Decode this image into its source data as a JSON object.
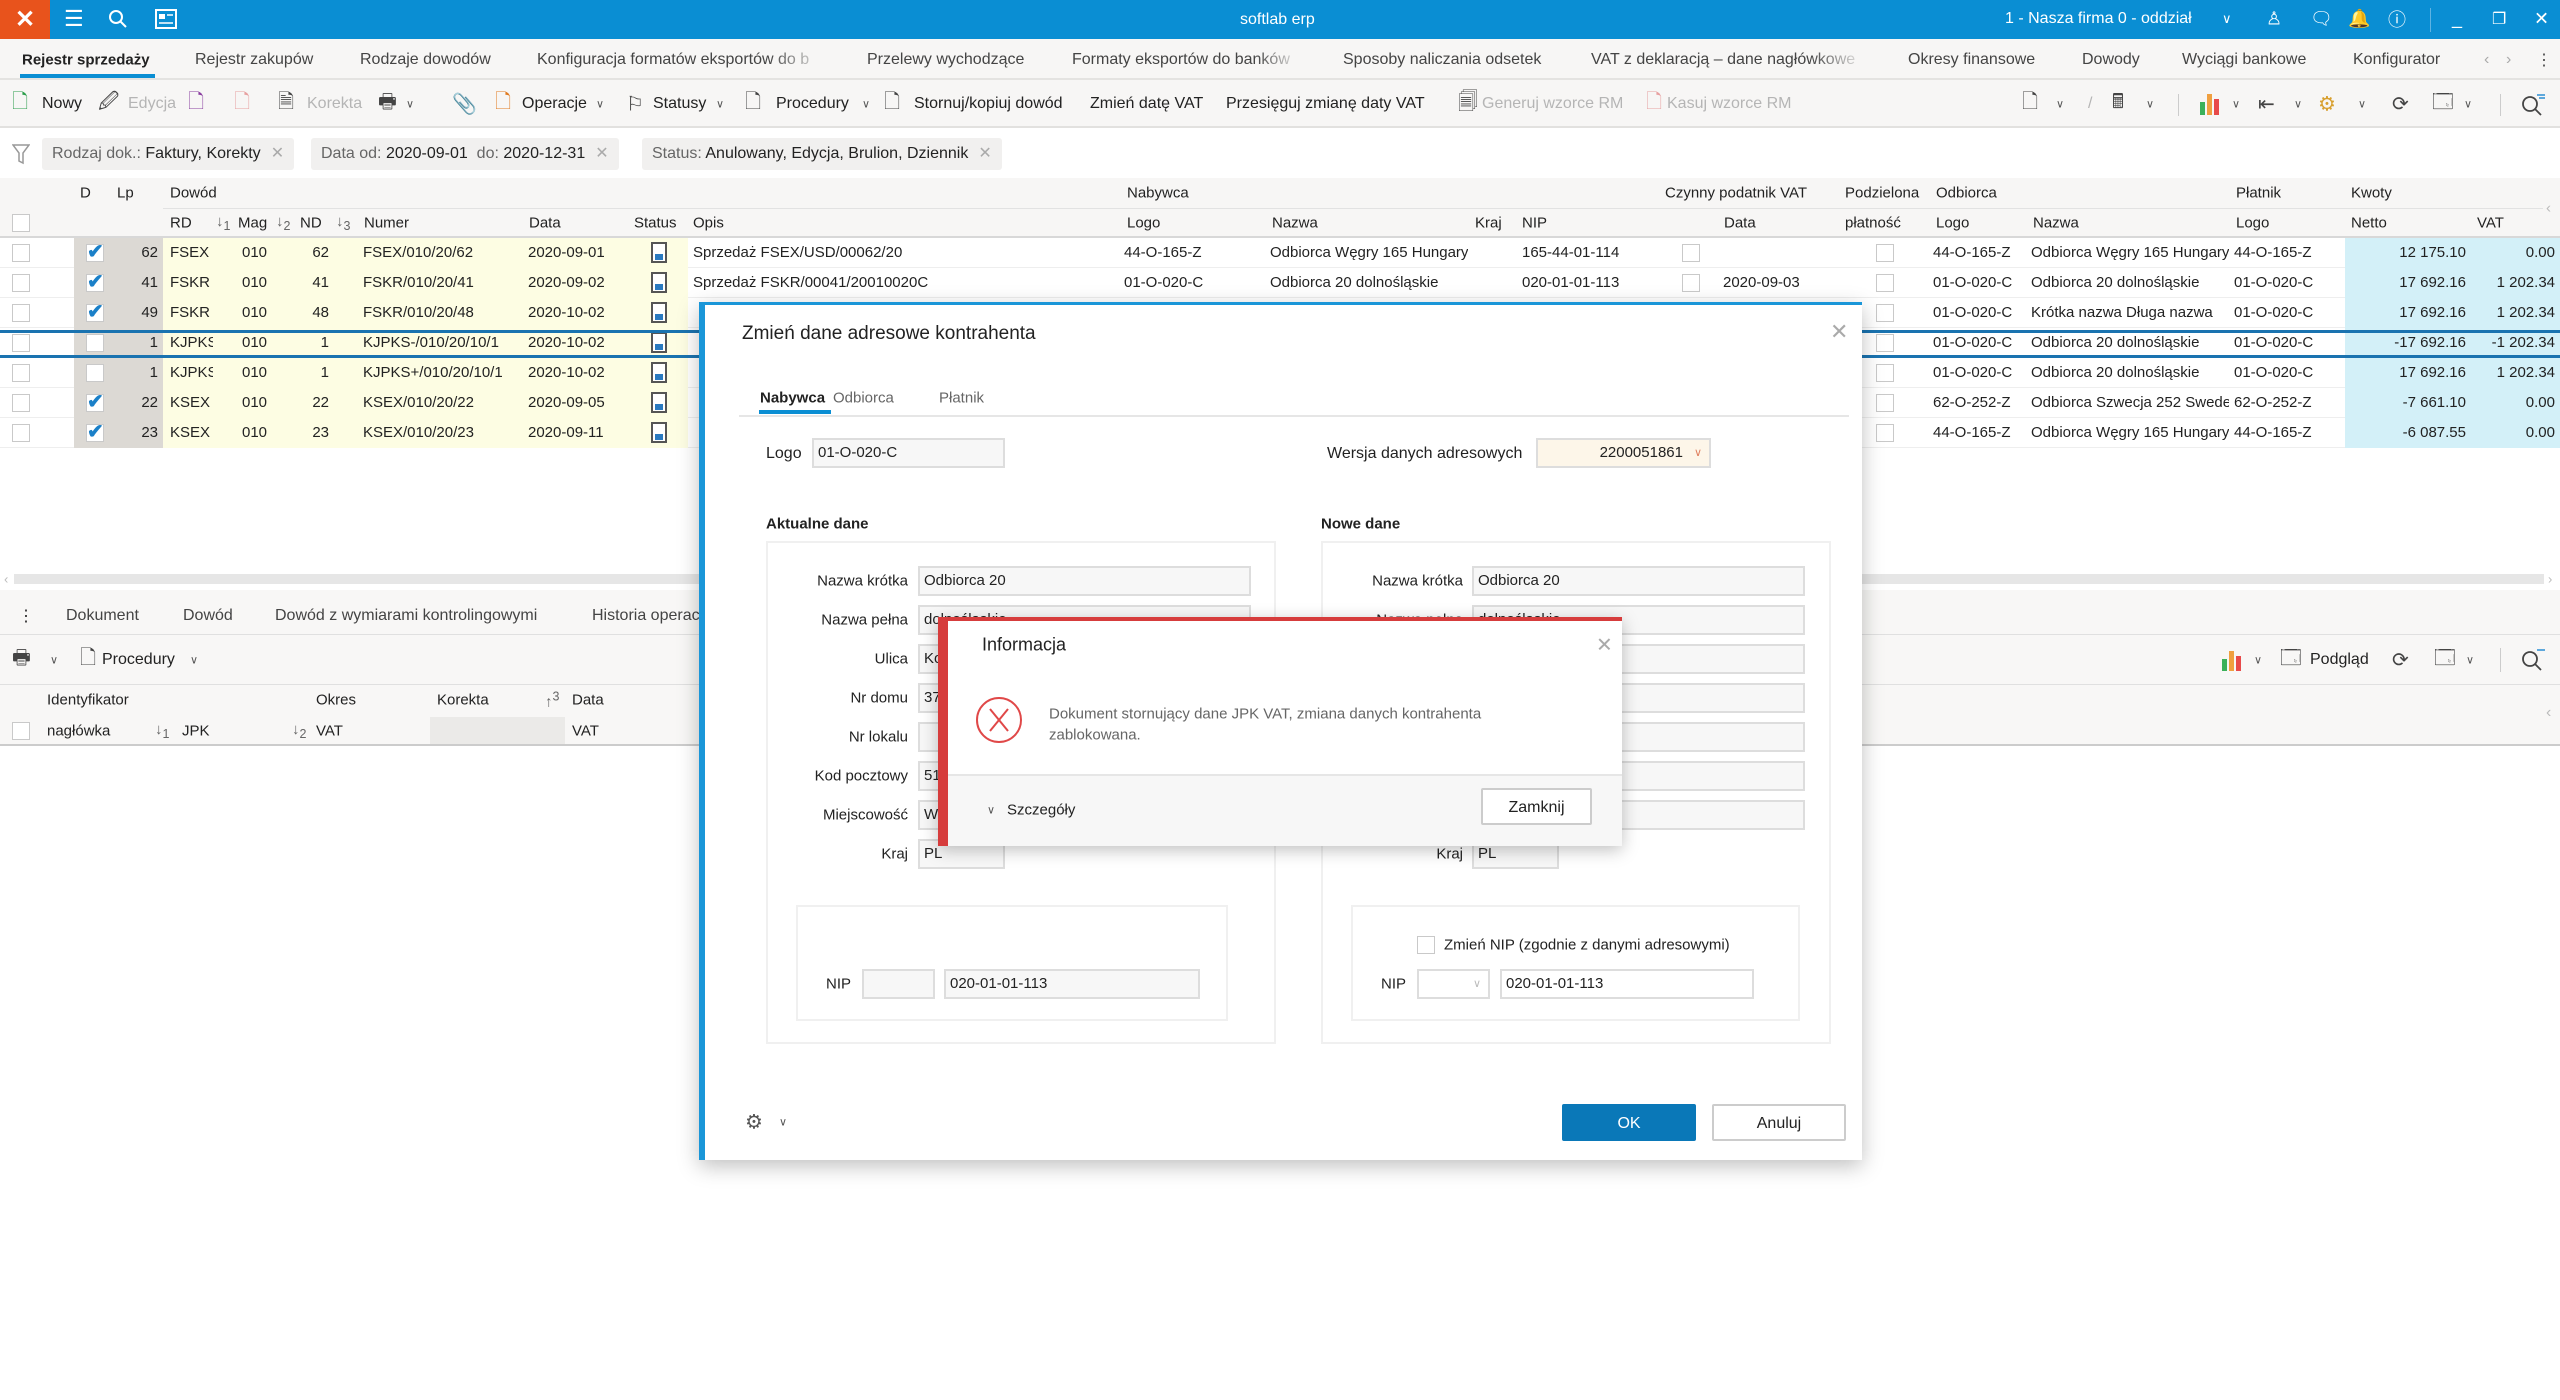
{
  "app": {
    "title": "softlab erp",
    "company": "1 - Nasza firma 0 - oddział"
  },
  "tabs": [
    "Rejestr sprzedaży",
    "Rejestr zakupów",
    "Rodzaje dowodów",
    "Konfiguracja formatów eksportów do b",
    "Przelewy wychodzące",
    "Formaty eksportów do banków",
    "Sposoby naliczania odsetek",
    "VAT z deklaracją – dane nagłówkowe",
    "Okresy finansowe",
    "Dowody",
    "Wyciągi bankowe",
    "Konfigurator"
  ],
  "toolbar": {
    "new": "Nowy",
    "edit": "Edycja",
    "correction": "Korekta",
    "operations": "Operacje",
    "statuses": "Statusy",
    "procedures": "Procedury",
    "reverse": "Stornuj/kopiuj dowód",
    "change_vat_date": "Zmień datę VAT",
    "move_vat_date": "Przesięguj zmianę daty VAT",
    "generate_rm": "Generuj wzorce RM",
    "delete_rm": "Kasuj wzorce RM"
  },
  "filters": [
    {
      "label": "Rodzaj dok.:",
      "value": "Faktury, Korekty"
    },
    {
      "label": "Data  od:",
      "value": "2020-09-01",
      "label2": "do:",
      "value2": "2020-12-31"
    },
    {
      "label": "Status:",
      "value": "Anulowany, Edycja, Brulion, Dziennik"
    }
  ],
  "table": {
    "groups": {
      "d": "D",
      "lp": "Lp",
      "dowod": "Dowód",
      "nabywca": "Nabywca",
      "czynny": "Czynny podatnik VAT",
      "podzielona": "Podzielona",
      "odbiorca": "Odbiorca",
      "platnik": "Płatnik",
      "kwoty": "Kwoty"
    },
    "cols": {
      "rd": "RD",
      "mag": "Mag",
      "nd": "ND",
      "numer": "Numer",
      "data": "Data",
      "status": "Status",
      "opis": "Opis",
      "logo": "Logo",
      "nazwa": "Nazwa",
      "kraj": "Kraj",
      "nip": "NIP",
      "cz_data": "Data",
      "platnosc": "płatność",
      "odb_logo": "Logo",
      "odb_nazwa": "Nazwa",
      "pl_logo": "Logo",
      "netto": "Netto",
      "vat": "VAT"
    },
    "sort": [
      "1",
      "2",
      "3"
    ],
    "rows": [
      {
        "d": true,
        "lp": "62",
        "rd": "FSEX",
        "mag": "010",
        "nd": "62",
        "numer": "FSEX/010/20/62",
        "data": "2020-09-01",
        "opis": "Sprzedaż FSEX/USD/00062/20",
        "logo": "44-O-165-Z",
        "nazwa": "Odbiorca Węgry 165 Hungary",
        "kraj": "",
        "nip": "165-44-01-114",
        "cz": false,
        "cz_data": "",
        "odb_logo": "44-O-165-Z",
        "odb_nazwa": "Odbiorca Węgry 165 Hungary",
        "pl_logo": "44-O-165-Z",
        "netto": "12 175.10",
        "vat": "0.00"
      },
      {
        "d": true,
        "lp": "41",
        "rd": "FSKR",
        "mag": "010",
        "nd": "41",
        "numer": "FSKR/010/20/41",
        "data": "2020-09-02",
        "opis": "Sprzedaż FSKR/00041/20010020C",
        "logo": "01-O-020-C",
        "nazwa": "Odbiorca 20 dolnośląskie",
        "kraj": "",
        "nip": "020-01-01-113",
        "cz": false,
        "cz_data": "2020-09-03",
        "odb_logo": "01-O-020-C",
        "odb_nazwa": "Odbiorca 20 dolnośląskie",
        "pl_logo": "01-O-020-C",
        "netto": "17 692.16",
        "vat": "1 202.34"
      },
      {
        "d": true,
        "lp": "49",
        "rd": "FSKR",
        "mag": "010",
        "nd": "48",
        "numer": "FSKR/010/20/48",
        "data": "2020-10-02",
        "odb_logo": "01-O-020-C",
        "odb_nazwa": "Krótka nazwa  Długa nazwa",
        "pl_logo": "01-O-020-C",
        "netto": "17 692.16",
        "vat": "1 202.34"
      },
      {
        "d": false,
        "lp": "1",
        "rd": "KJPKS-",
        "mag": "010",
        "nd": "1",
        "numer": "KJPKS-/010/20/10/1",
        "data": "2020-10-02",
        "selected": true,
        "odb_logo": "01-O-020-C",
        "odb_nazwa": "Odbiorca 20 dolnośląskie",
        "pl_logo": "01-O-020-C",
        "netto": "-17 692.16",
        "vat": "-1 202.34"
      },
      {
        "d": false,
        "lp": "1",
        "rd": "KJPKS+",
        "mag": "010",
        "nd": "1",
        "numer": "KJPKS+/010/20/10/1",
        "data": "2020-10-02",
        "odb_logo": "01-O-020-C",
        "odb_nazwa": "Odbiorca 20 dolnośląskie",
        "pl_logo": "01-O-020-C",
        "netto": "17 692.16",
        "vat": "1 202.34"
      },
      {
        "d": true,
        "lp": "22",
        "rd": "KSEX",
        "mag": "010",
        "nd": "22",
        "numer": "KSEX/010/20/22",
        "data": "2020-09-05",
        "odb_logo": "62-O-252-Z",
        "odb_nazwa": "Odbiorca Szwecja 252 Sweden",
        "pl_logo": "62-O-252-Z",
        "netto": "-7 661.10",
        "vat": "0.00"
      },
      {
        "d": true,
        "lp": "23",
        "rd": "KSEX",
        "mag": "010",
        "nd": "23",
        "numer": "KSEX/010/20/23",
        "data": "2020-09-11",
        "odb_logo": "44-O-165-Z",
        "odb_nazwa": "Odbiorca Węgry 165 Hungary",
        "pl_logo": "44-O-165-Z",
        "netto": "-6 087.55",
        "vat": "0.00"
      }
    ]
  },
  "bottom": {
    "tabs": [
      "Dokument",
      "Dowód",
      "Dowód z wymiarami kontrolingowymi",
      "Historia operacji"
    ],
    "procedures": "Procedury",
    "preview": "Podgląd",
    "headers": {
      "identyfikator": "Identyfikator",
      "okres": "Okres",
      "korekta": "Korekta",
      "data": "Data",
      "naglowka": "nagłówka",
      "jpk": "JPK",
      "vat": "VAT",
      "vat2": "VAT",
      "sort3": "3",
      "sort1": "1",
      "sort2": "2"
    }
  },
  "dialog": {
    "title": "Zmień dane adresowe kontrahenta",
    "tabs": [
      "Nabywca",
      "Odbiorca",
      "Płatnik"
    ],
    "logo_label": "Logo",
    "logo_value": "01-O-020-C",
    "version_label": "Wersja danych adresowych",
    "version_value": "2200051861",
    "current_title": "Aktualne dane",
    "new_title": "Nowe dane",
    "labels": [
      "Nazwa krótka",
      "Nazwa pełna",
      "Ulica",
      "Nr domu",
      "Nr lokalu",
      "Kod pocztowy",
      "Miejscowość",
      "Kraj"
    ],
    "current": [
      "Odbiorca 20",
      "dolnośląskie",
      "Ko",
      "37",
      "",
      "51-",
      "Wr",
      "PL"
    ],
    "new": [
      "Odbiorca 20",
      "dolnośląskie",
      "",
      "",
      "",
      "",
      "",
      "PL"
    ],
    "nip_label": "NIP",
    "nip_prefix": "",
    "nip_value": "020-01-01-113",
    "change_nip_label": "Zmień NIP (zgodnie z danymi adresowymi)",
    "new_nip_value": "020-01-01-113",
    "ok": "OK",
    "cancel": "Anuluj"
  },
  "info": {
    "title": "Informacja",
    "message_line1": "Dokument stornujący dane JPK VAT, zmiana danych kontrahenta",
    "message_line2": "zablokowana.",
    "details": "Szczegóły",
    "close": "Zamknij"
  },
  "colors": {
    "titlebar": "#0a8ed3",
    "logo": "#e8531c",
    "accent": "#0a78b8",
    "error": "#d63c3c",
    "netto_bg": "#d3f0f8",
    "dowod_bg": "#fdfde3"
  }
}
